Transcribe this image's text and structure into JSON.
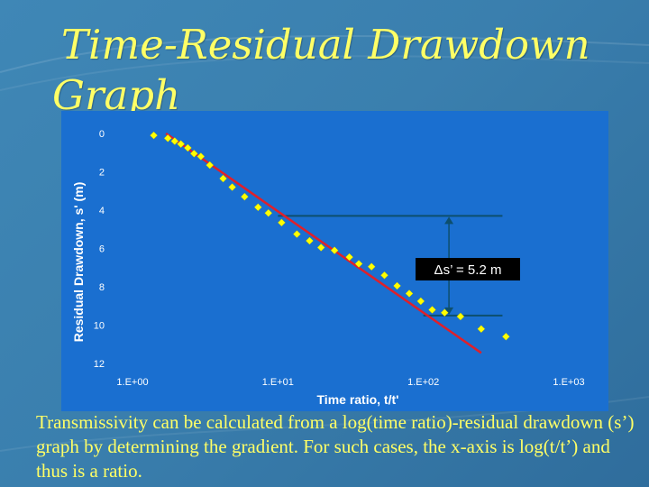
{
  "title_line1": "Time-Residual Drawdown",
  "title_line2": "Graph",
  "caption": "Transmissivity can be calculated from a log(time ratio)-residual drawdown (s’) graph by determining the gradient. For such cases, the x-axis is log(t/t’) and thus is a ratio.",
  "colors": {
    "background": "#3a7fae",
    "title_text": "#ffff66",
    "plot_area": "#1a6fd0",
    "marker": "#ffff00",
    "fit_line": "#e0202a",
    "annotation_line": "#0d4f6e",
    "annotation_box": "#000000",
    "axis_text": "#ffffff"
  },
  "chart_data": {
    "type": "scatter",
    "xscale": "log",
    "xlim": [
      1,
      1000
    ],
    "ylim": [
      0,
      12
    ],
    "y_inverted": true,
    "xlabel": "Time ratio, t/t'",
    "ylabel": "Residual Drawdown, s' (m)",
    "x_ticks": [
      "1.E+00",
      "1.E+01",
      "1.E+02",
      "1.E+03"
    ],
    "y_ticks": [
      "0",
      "2",
      "4",
      "6",
      "8",
      "10",
      "12"
    ],
    "grid": false,
    "legend": "none",
    "series": [
      {
        "marker": "diamond",
        "points": [
          {
            "x": 1.4,
            "y": 0.1
          },
          {
            "x": 1.75,
            "y": 0.25
          },
          {
            "x": 1.95,
            "y": 0.4
          },
          {
            "x": 2.15,
            "y": 0.55
          },
          {
            "x": 2.4,
            "y": 0.75
          },
          {
            "x": 2.65,
            "y": 1.05
          },
          {
            "x": 2.95,
            "y": 1.2
          },
          {
            "x": 3.4,
            "y": 1.65
          },
          {
            "x": 4.2,
            "y": 2.35
          },
          {
            "x": 4.85,
            "y": 2.8
          },
          {
            "x": 5.9,
            "y": 3.3
          },
          {
            "x": 7.3,
            "y": 3.85
          },
          {
            "x": 8.6,
            "y": 4.15
          },
          {
            "x": 10.6,
            "y": 4.65
          },
          {
            "x": 13.5,
            "y": 5.25
          },
          {
            "x": 16.5,
            "y": 5.6
          },
          {
            "x": 19.8,
            "y": 5.95
          },
          {
            "x": 24.5,
            "y": 6.1
          },
          {
            "x": 31,
            "y": 6.45
          },
          {
            "x": 36,
            "y": 6.8
          },
          {
            "x": 44,
            "y": 6.95
          },
          {
            "x": 54,
            "y": 7.4
          },
          {
            "x": 66,
            "y": 7.95
          },
          {
            "x": 80,
            "y": 8.35
          },
          {
            "x": 96,
            "y": 8.75
          },
          {
            "x": 115,
            "y": 9.2
          },
          {
            "x": 140,
            "y": 9.35
          },
          {
            "x": 180,
            "y": 9.55
          },
          {
            "x": 250,
            "y": 10.2
          },
          {
            "x": 370,
            "y": 10.6
          }
        ]
      }
    ],
    "fit_line": {
      "x": [
        1.7,
        250
      ],
      "y": [
        0,
        11.45
      ]
    },
    "annotation": {
      "text": "Δs’ = 5.2 m",
      "x_bracket": 150,
      "y_top": 4.3,
      "y_bottom": 9.5,
      "x_start_top": 10,
      "x_end_top": 350,
      "x_start_bottom": 100,
      "x_end_bottom": 350
    }
  }
}
